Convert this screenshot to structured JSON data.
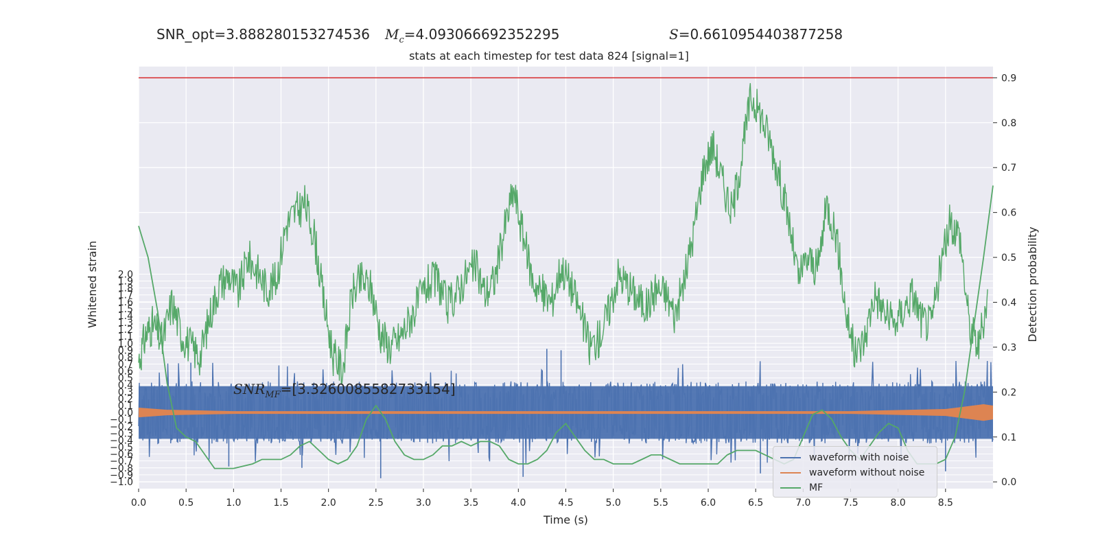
{
  "header": {
    "snr_opt": "SNR_opt=3.888280153274536",
    "mc_symbol": "M",
    "mc_sub": "c",
    "mc_value": "=4.093066692352295",
    "s_symbol": "S",
    "s_value": "=0.6610954403877258"
  },
  "annotation": {
    "snr_mf_symbol": "SNR",
    "snr_mf_sub": "MF",
    "snr_mf_value": "=[3.3260085582733154]"
  },
  "chart_data": {
    "type": "line",
    "title": "stats at each timestep for test data 824 [signal=1]",
    "xlabel": "Time (s)",
    "ylabel": "Whitened strain",
    "y2label": "Detection probability",
    "xlim": [
      0.0,
      9.0
    ],
    "ylim": [
      -1.1,
      5.0
    ],
    "y2lim": [
      -0.015,
      0.925
    ],
    "xticks": [
      "0.0",
      "0.5",
      "1.0",
      "1.5",
      "2.0",
      "2.5",
      "3.0",
      "3.5",
      "4.0",
      "4.5",
      "5.0",
      "5.5",
      "6.0",
      "6.5",
      "7.0",
      "7.5",
      "8.0",
      "8.5"
    ],
    "yticks": [
      "−1.0",
      "−0.9",
      "−0.8",
      "−0.7",
      "−0.6",
      "−0.5",
      "−0.4",
      "−0.3",
      "−0.2",
      "−0.1",
      "0.0",
      "0.1",
      "0.2",
      "0.3",
      "0.4",
      "0.5",
      "0.6",
      "0.7",
      "0.8",
      "0.9",
      "1.0",
      "1.1",
      "1.2",
      "1.3",
      "1.4",
      "1.5",
      "1.6",
      "1.7",
      "1.8",
      "1.9",
      "2.0"
    ],
    "y2ticks": [
      "0.0",
      "0.1",
      "0.2",
      "0.3",
      "0.4",
      "0.5",
      "0.6",
      "0.7",
      "0.8",
      "0.9"
    ],
    "threshold": {
      "value": 0.9,
      "axis": "right",
      "color": "#d62728"
    },
    "grid": true,
    "legend_position": "bottom-right",
    "colors": {
      "noise": "#4c72b0",
      "clean": "#dd8452",
      "mf": "#55a868",
      "background": "#eaeaf2"
    },
    "series": [
      {
        "name": "waveform with noise",
        "axis": "left",
        "envelope": {
          "typical_min": -0.45,
          "typical_max": 0.45,
          "max_peak": 0.92,
          "min_peak": -0.95
        },
        "peaks": [
          [
            0.55,
            0.72
          ],
          [
            0.95,
            -0.78
          ],
          [
            1.72,
            -0.8
          ],
          [
            2.55,
            -0.95
          ],
          [
            4.3,
            0.92
          ],
          [
            4.45,
            0.9
          ],
          [
            4.05,
            -0.93
          ],
          [
            6.55,
            -0.88
          ],
          [
            8.5,
            -0.85
          ]
        ]
      },
      {
        "name": "waveform without noise",
        "axis": "left",
        "amplitude": [
          [
            0.0,
            0.07
          ],
          [
            0.3,
            0.04
          ],
          [
            1.0,
            0.02
          ],
          [
            7.5,
            0.02
          ],
          [
            8.5,
            0.05
          ],
          [
            8.9,
            0.12
          ],
          [
            9.0,
            0.1
          ]
        ]
      },
      {
        "name": "MF",
        "axis": "right",
        "x": [
          0.0,
          0.1,
          0.2,
          0.3,
          0.4,
          0.5,
          0.6,
          0.7,
          0.8,
          1.0,
          1.2,
          1.3,
          1.4,
          1.5,
          1.6,
          1.7,
          1.8,
          1.9,
          2.0,
          2.1,
          2.2,
          2.3,
          2.4,
          2.5,
          2.6,
          2.7,
          2.8,
          2.9,
          3.0,
          3.1,
          3.2,
          3.3,
          3.4,
          3.5,
          3.6,
          3.7,
          3.8,
          3.9,
          4.0,
          4.1,
          4.2,
          4.3,
          4.4,
          4.5,
          4.6,
          4.7,
          4.8,
          4.9,
          5.0,
          5.1,
          5.2,
          5.3,
          5.4,
          5.5,
          5.6,
          5.7,
          5.8,
          5.9,
          6.0,
          6.1,
          6.2,
          6.3,
          6.4,
          6.5,
          6.6,
          6.7,
          6.8,
          6.9,
          7.0,
          7.1,
          7.2,
          7.3,
          7.4,
          7.5,
          7.6,
          7.7,
          7.8,
          7.9,
          8.0,
          8.1,
          8.2,
          8.3,
          8.4,
          8.5,
          8.6,
          8.7,
          8.8,
          8.9,
          9.0
        ],
        "values": [
          0.57,
          0.5,
          0.38,
          0.22,
          0.12,
          0.1,
          0.09,
          0.06,
          0.03,
          0.03,
          0.04,
          0.05,
          0.05,
          0.05,
          0.06,
          0.08,
          0.09,
          0.07,
          0.05,
          0.04,
          0.05,
          0.08,
          0.14,
          0.17,
          0.14,
          0.09,
          0.06,
          0.05,
          0.05,
          0.06,
          0.08,
          0.08,
          0.09,
          0.08,
          0.09,
          0.09,
          0.08,
          0.05,
          0.04,
          0.04,
          0.05,
          0.07,
          0.11,
          0.13,
          0.1,
          0.07,
          0.05,
          0.05,
          0.04,
          0.04,
          0.04,
          0.05,
          0.06,
          0.06,
          0.05,
          0.04,
          0.04,
          0.04,
          0.04,
          0.04,
          0.06,
          0.07,
          0.07,
          0.07,
          0.06,
          0.05,
          0.04,
          0.05,
          0.1,
          0.15,
          0.16,
          0.14,
          0.1,
          0.07,
          0.05,
          0.08,
          0.11,
          0.13,
          0.12,
          0.07,
          0.04,
          0.04,
          0.04,
          0.05,
          0.1,
          0.2,
          0.35,
          0.5,
          0.66
        ],
        "detection_probability": {
          "x": [
            0.0,
            0.08,
            0.15,
            0.25,
            0.35,
            0.45,
            0.55,
            0.65,
            0.75,
            0.85,
            0.95,
            1.05,
            1.15,
            1.25,
            1.35,
            1.45,
            1.55,
            1.65,
            1.75,
            1.85,
            1.95,
            2.05,
            2.15,
            2.25,
            2.35,
            2.45,
            2.55,
            2.65,
            2.75,
            2.85,
            2.95,
            3.05,
            3.15,
            3.25,
            3.35,
            3.45,
            3.55,
            3.65,
            3.75,
            3.85,
            3.95,
            4.05,
            4.15,
            4.25,
            4.35,
            4.45,
            4.55,
            4.65,
            4.75,
            4.85,
            4.95,
            5.05,
            5.15,
            5.25,
            5.35,
            5.45,
            5.55,
            5.65,
            5.75,
            5.85,
            5.95,
            6.05,
            6.15,
            6.25,
            6.35,
            6.45,
            6.55,
            6.65,
            6.75,
            6.85,
            6.95,
            7.05,
            7.15,
            7.25,
            7.35,
            7.45,
            7.55,
            7.65,
            7.75,
            7.85,
            7.95,
            8.05,
            8.15,
            8.25,
            8.35,
            8.45,
            8.55,
            8.65,
            8.75,
            8.85,
            8.95
          ],
          "values": [
            0.27,
            0.33,
            0.35,
            0.31,
            0.4,
            0.33,
            0.3,
            0.28,
            0.37,
            0.44,
            0.46,
            0.42,
            0.5,
            0.47,
            0.43,
            0.45,
            0.57,
            0.6,
            0.62,
            0.55,
            0.4,
            0.28,
            0.25,
            0.42,
            0.45,
            0.43,
            0.33,
            0.3,
            0.32,
            0.36,
            0.4,
            0.44,
            0.45,
            0.39,
            0.42,
            0.46,
            0.48,
            0.42,
            0.45,
            0.56,
            0.65,
            0.55,
            0.45,
            0.42,
            0.4,
            0.48,
            0.44,
            0.38,
            0.3,
            0.32,
            0.38,
            0.46,
            0.44,
            0.41,
            0.39,
            0.43,
            0.42,
            0.37,
            0.45,
            0.56,
            0.7,
            0.75,
            0.67,
            0.6,
            0.72,
            0.86,
            0.82,
            0.76,
            0.68,
            0.58,
            0.45,
            0.5,
            0.47,
            0.62,
            0.55,
            0.38,
            0.28,
            0.32,
            0.42,
            0.38,
            0.35,
            0.38,
            0.42,
            0.36,
            0.35,
            0.48,
            0.58,
            0.55,
            0.35,
            0.3,
            0.42
          ]
        }
      }
    ]
  }
}
